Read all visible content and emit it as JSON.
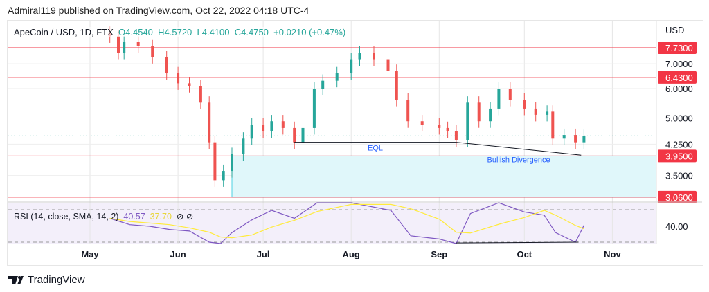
{
  "header": {
    "published": "Admiral119 published on TradingView.com, Oct 22, 2022 04:18 UTC-4"
  },
  "legend": {
    "symbol": "ApeCoin / USD, 1D, FTX",
    "open": "O4.4540",
    "high": "H4.5720",
    "low": "L4.4100",
    "close": "C4.4750",
    "change": "+0.0210 (+0.47%)"
  },
  "rsi_legend": {
    "label": "RSI (14, close, SMA, 14, 2)",
    "rsi": "40.57",
    "sma": "37.70",
    "icons": "⊘ ⊘"
  },
  "brand": {
    "name": "TradingView"
  },
  "colors": {
    "up": "#26a69a",
    "down": "#ef5350",
    "level": "#f23645",
    "zone": "#e0f7fa",
    "rsi": "#7e57c2",
    "sma": "#ffeb3b"
  },
  "chart_data": {
    "type": "candlestick",
    "currency": "USD",
    "scale": "log",
    "ylim": [
      3.0,
      8.6
    ],
    "price_ticks": [
      "7.0000",
      "6.0000",
      "5.0000",
      "4.2500",
      "3.5000"
    ],
    "price_tick_values": [
      7.0,
      6.0,
      5.0,
      4.25,
      3.5
    ],
    "month_labels": [
      "May",
      "Jun",
      "Jul",
      "Aug",
      "Sep",
      "Oct",
      "Nov"
    ],
    "month_dates": [
      "2022-05-01",
      "2022-06-01",
      "2022-07-01",
      "2022-08-01",
      "2022-09-01",
      "2022-10-01",
      "2022-11-01"
    ],
    "closes": [
      [
        "2022-05-08",
        8.3
      ],
      [
        "2022-05-11",
        7.5
      ],
      [
        "2022-05-13",
        8.0
      ],
      [
        "2022-05-18",
        7.8
      ],
      [
        "2022-05-23",
        7.3
      ],
      [
        "2022-05-28",
        6.6
      ],
      [
        "2022-06-01",
        6.2
      ],
      [
        "2022-06-05",
        6.1
      ],
      [
        "2022-06-09",
        5.5
      ],
      [
        "2022-06-12",
        4.3
      ],
      [
        "2022-06-14",
        3.4
      ],
      [
        "2022-06-17",
        3.6
      ],
      [
        "2022-06-20",
        4.0
      ],
      [
        "2022-06-24",
        4.4
      ],
      [
        "2022-06-27",
        4.8
      ],
      [
        "2022-07-01",
        4.6
      ],
      [
        "2022-07-04",
        4.9
      ],
      [
        "2022-07-08",
        4.7
      ],
      [
        "2022-07-12",
        4.3
      ],
      [
        "2022-07-15",
        4.7
      ],
      [
        "2022-07-19",
        6.0
      ],
      [
        "2022-07-22",
        6.3
      ],
      [
        "2022-07-27",
        6.6
      ],
      [
        "2022-08-01",
        7.2
      ],
      [
        "2022-08-04",
        7.5
      ],
      [
        "2022-08-09",
        7.2
      ],
      [
        "2022-08-14",
        6.7
      ],
      [
        "2022-08-17",
        5.6
      ],
      [
        "2022-08-21",
        4.9
      ],
      [
        "2022-08-26",
        4.8
      ],
      [
        "2022-09-01",
        4.7
      ],
      [
        "2022-09-04",
        4.6
      ],
      [
        "2022-09-07",
        4.35
      ],
      [
        "2022-09-11",
        5.5
      ],
      [
        "2022-09-15",
        4.9
      ],
      [
        "2022-09-19",
        5.3
      ],
      [
        "2022-09-22",
        6.0
      ],
      [
        "2022-09-26",
        5.6
      ],
      [
        "2022-10-01",
        5.3
      ],
      [
        "2022-10-05",
        5.1
      ],
      [
        "2022-10-09",
        5.2
      ],
      [
        "2022-10-11",
        4.4
      ],
      [
        "2022-10-15",
        4.5
      ],
      [
        "2022-10-19",
        4.3
      ],
      [
        "2022-10-22",
        4.475
      ]
    ],
    "levels": [
      {
        "value": 7.73,
        "label": "7.7300"
      },
      {
        "value": 6.43,
        "label": "6.4300"
      },
      {
        "value": 3.95,
        "label": "3.9500"
      },
      {
        "value": 3.06,
        "label": "3.0600"
      }
    ],
    "zone": {
      "from": 3.06,
      "to": 3.95,
      "start": "2022-06-20"
    },
    "annotations": [
      {
        "text": "EQL",
        "from": [
          "2022-07-12",
          4.3
        ],
        "to": [
          "2022-09-07",
          4.3
        ]
      },
      {
        "text": "Bullish Divergence",
        "from": [
          "2022-09-07",
          4.3
        ],
        "to": [
          "2022-10-21",
          3.97
        ]
      }
    ],
    "rsi": {
      "tick": "40.00",
      "tick_value": 40,
      "values": [
        [
          "2022-05-08",
          45
        ],
        [
          "2022-05-15",
          41
        ],
        [
          "2022-05-22",
          40
        ],
        [
          "2022-05-29",
          38
        ],
        [
          "2022-06-05",
          37
        ],
        [
          "2022-06-12",
          30
        ],
        [
          "2022-06-16",
          28
        ],
        [
          "2022-06-20",
          36
        ],
        [
          "2022-06-27",
          44
        ],
        [
          "2022-07-04",
          50
        ],
        [
          "2022-07-12",
          45
        ],
        [
          "2022-07-20",
          58
        ],
        [
          "2022-08-01",
          62
        ],
        [
          "2022-08-15",
          50
        ],
        [
          "2022-08-22",
          34
        ],
        [
          "2022-09-01",
          32
        ],
        [
          "2022-09-07",
          29
        ],
        [
          "2022-09-12",
          48
        ],
        [
          "2022-09-22",
          56
        ],
        [
          "2022-10-01",
          49
        ],
        [
          "2022-10-08",
          47
        ],
        [
          "2022-10-12",
          36
        ],
        [
          "2022-10-19",
          30
        ],
        [
          "2022-10-22",
          40.57
        ]
      ],
      "divergence": [
        [
          "2022-09-07",
          29.5
        ],
        [
          "2022-10-20",
          30
        ]
      ]
    }
  }
}
